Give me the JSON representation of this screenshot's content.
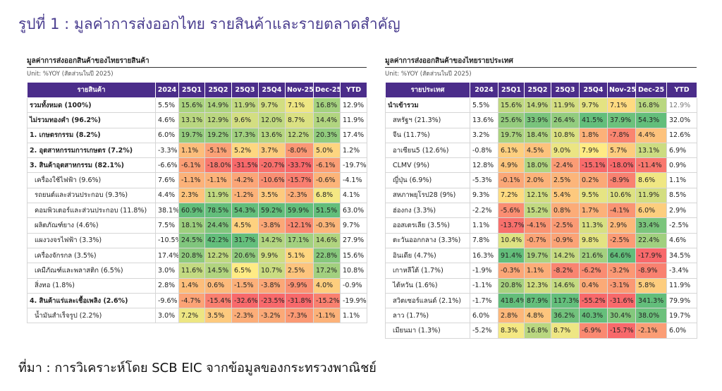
{
  "figure_title": "รูปที่ 1 : มูลค่าการส่งออกไทย รายสินค้าและรายตลาดสำคัญ",
  "source": "ที่มา : การวิเคราะห์โดย SCB EIC จากข้อมูลของกระทรวงพาณิชย์",
  "colors": {
    "header_bg": "#4b2d8a",
    "title": "#4a3d8f",
    "good": "#63be7b",
    "neutral": "#ffeb84",
    "bad": "#f8696b"
  },
  "left_table": {
    "title": "มูลค่าการส่งออกสินค้าของไทยรายสินค้า",
    "unit": "Unit: %YOY (สัดส่วนในปี 2025)",
    "headers": [
      "รายสินค้า",
      "2024",
      "25Q1",
      "25Q2",
      "25Q3",
      "25Q4",
      "Nov-25",
      "Dec-25",
      "YTD"
    ],
    "rows": [
      {
        "name": "รวมทั้งหมด (100%)",
        "level": "bold",
        "values": [
          "5.5%",
          "15.6%",
          "14.9%",
          "11.9%",
          "9.7%",
          "7.1%",
          "16.8%",
          "12.9%"
        ]
      },
      {
        "name": "ไม่รวมทองคำ (96.2%)",
        "level": "bold",
        "values": [
          "4.6%",
          "13.1%",
          "12.9%",
          "9.6%",
          "12.0%",
          "8.7%",
          "14.4%",
          "11.9%"
        ]
      },
      {
        "name": "1. เกษตรกรรม (8.2%)",
        "level": "bold",
        "values": [
          "6.0%",
          "19.7%",
          "19.2%",
          "17.3%",
          "13.6%",
          "12.2%",
          "20.3%",
          "17.4%"
        ]
      },
      {
        "name": "2. อุตสาหกรรมการเกษตร (7.2%)",
        "level": "bold",
        "values": [
          "-3.3%",
          "1.1%",
          "-5.1%",
          "5.2%",
          "3.7%",
          "-8.0%",
          "5.0%",
          "1.2%"
        ]
      },
      {
        "name": "3. สินค้าอุตสาหกรรม (82.1%)",
        "level": "bold",
        "values": [
          "-6.6%",
          "-6.1%",
          "-18.0%",
          "-31.5%",
          "-20.7%",
          "-33.7%",
          "-6.1%",
          "-19.7%"
        ]
      },
      {
        "name": "เครื่องใช้ไฟฟ้า (9.6%)",
        "level": "ind",
        "values": [
          "7.6%",
          "-1.1%",
          "-1.1%",
          "-4.2%",
          "-10.6%",
          "-15.7%",
          "-0.6%",
          "-4.1%"
        ]
      },
      {
        "name": "รถยนต์และส่วนประกอบ (9.3%)",
        "level": "ind",
        "values": [
          "4.4%",
          "2.3%",
          "11.9%",
          "-1.2%",
          "3.5%",
          "-2.3%",
          "6.8%",
          "4.1%"
        ]
      },
      {
        "name": "คอมพิวเตอร์และส่วนประกอบ (11.8%)",
        "level": "ind",
        "values": [
          "38.1%",
          "60.9%",
          "78.5%",
          "54.3%",
          "59.2%",
          "59.9%",
          "51.5%",
          "63.0%"
        ]
      },
      {
        "name": "ผลิตภัณฑ์ยาง (4.6%)",
        "level": "ind",
        "values": [
          "7.5%",
          "18.1%",
          "24.4%",
          "4.5%",
          "-3.8%",
          "-12.1%",
          "-0.3%",
          "9.7%"
        ]
      },
      {
        "name": "แผงวงจรไฟฟ้า (3.3%)",
        "level": "ind",
        "values": [
          "-10.5%",
          "24.5%",
          "42.2%",
          "31.7%",
          "14.2%",
          "17.1%",
          "14.6%",
          "27.9%"
        ]
      },
      {
        "name": "เครื่องจักรกล (3.5%)",
        "level": "ind",
        "values": [
          "17.4%",
          "20.8%",
          "12.2%",
          "20.6%",
          "9.9%",
          "5.1%",
          "22.8%",
          "15.6%"
        ]
      },
      {
        "name": "เคมีภัณฑ์และพลาสติก (6.5%)",
        "level": "ind",
        "values": [
          "3.0%",
          "11.6%",
          "14.5%",
          "6.5%",
          "10.7%",
          "2.5%",
          "17.2%",
          "10.8%"
        ]
      },
      {
        "name": "สิ่งทอ (1.8%)",
        "level": "ind",
        "values": [
          "2.8%",
          "1.4%",
          "0.6%",
          "-1.5%",
          "-3.8%",
          "-9.9%",
          "4.0%",
          "-0.9%"
        ]
      },
      {
        "name": "4. สินค้าแร่และเชื้อเพลิง (2.6%)",
        "level": "bold",
        "values": [
          "-9.6%",
          "-4.7%",
          "-15.4%",
          "-32.6%",
          "-23.5%",
          "-31.8%",
          "-15.2%",
          "-19.9%"
        ]
      },
      {
        "name": "น้ำมันสำเร็จรูป (2.2%)",
        "level": "ind",
        "values": [
          "3.0%",
          "7.2%",
          "3.5%",
          "-2.3%",
          "-3.2%",
          "-7.3%",
          "-1.1%",
          "1.1%"
        ]
      }
    ]
  },
  "right_table": {
    "title": "มูลค่าการส่งออกสินค้าของไทยรายประเทศ",
    "unit": "Unit: %YOY (สัดส่วนในปี 2025)",
    "headers": [
      "รายประเทศ",
      "2024",
      "25Q1",
      "25Q2",
      "25Q3",
      "25Q4",
      "Nov-25",
      "Dec-25",
      "YTD"
    ],
    "rows": [
      {
        "name": "นำเข้ารวม",
        "level": "bold",
        "values": [
          "5.5%",
          "15.6%",
          "14.9%",
          "11.9%",
          "9.7%",
          "7.1%",
          "16.8%",
          "12.9%"
        ]
      },
      {
        "name": "สหรัฐฯ (21.3%)",
        "level": "ind",
        "values": [
          "13.6%",
          "25.6%",
          "33.9%",
          "26.4%",
          "41.5%",
          "37.9%",
          "54.3%",
          "32.0%"
        ]
      },
      {
        "name": "จีน (11.7%)",
        "level": "ind",
        "values": [
          "3.2%",
          "19.7%",
          "18.4%",
          "10.8%",
          "1.8%",
          "-7.8%",
          "4.4%",
          "12.6%"
        ]
      },
      {
        "name": "อาเซียน5 (12.6%)",
        "level": "ind",
        "values": [
          "-0.8%",
          "6.1%",
          "4.5%",
          "9.0%",
          "7.9%",
          "5.7%",
          "13.1%",
          "6.9%"
        ]
      },
      {
        "name": "CLMV (9%)",
        "level": "ind",
        "values": [
          "12.8%",
          "4.9%",
          "18.0%",
          "-2.4%",
          "-15.1%",
          "-18.0%",
          "-11.4%",
          "0.9%"
        ]
      },
      {
        "name": "ญี่ปุ่น (6.9%)",
        "level": "ind",
        "values": [
          "-5.3%",
          "-0.1%",
          "2.0%",
          "2.5%",
          "0.2%",
          "-8.9%",
          "8.6%",
          "1.1%"
        ]
      },
      {
        "name": "สหภาพยุโรป28 (9%)",
        "level": "ind",
        "values": [
          "9.3%",
          "7.2%",
          "12.1%",
          "5.4%",
          "9.5%",
          "10.6%",
          "11.9%",
          "8.5%"
        ]
      },
      {
        "name": "ฮ่องกง (3.3%)",
        "level": "ind",
        "values": [
          "-2.2%",
          "-5.6%",
          "15.2%",
          "0.8%",
          "1.7%",
          "-4.1%",
          "6.0%",
          "2.9%"
        ]
      },
      {
        "name": "ออสเตรเลีย (3.5%)",
        "level": "ind",
        "values": [
          "1.1%",
          "-13.7%",
          "-4.1%",
          "-2.5%",
          "11.3%",
          "2.9%",
          "33.4%",
          "-2.5%"
        ]
      },
      {
        "name": "ตะวันออกกลาง (3.3%)",
        "level": "ind",
        "values": [
          "7.8%",
          "10.4%",
          "-0.7%",
          "-0.9%",
          "9.8%",
          "-2.5%",
          "22.4%",
          "4.6%"
        ]
      },
      {
        "name": "อินเดีย (4.7%)",
        "level": "ind",
        "values": [
          "16.3%",
          "91.4%",
          "19.7%",
          "14.2%",
          "21.6%",
          "64.6%",
          "-17.9%",
          "34.5%"
        ]
      },
      {
        "name": "เกาหลีใต้ (1.7%)",
        "level": "ind",
        "values": [
          "-1.9%",
          "-0.3%",
          "1.1%",
          "-8.2%",
          "-6.2%",
          "-3.2%",
          "-8.9%",
          "-3.4%"
        ]
      },
      {
        "name": "ไต้หวัน (1.6%)",
        "level": "ind",
        "values": [
          "-1.1%",
          "20.8%",
          "12.3%",
          "14.6%",
          "0.4%",
          "-3.1%",
          "5.8%",
          "11.9%"
        ]
      },
      {
        "name": "สวิตเซอร์แลนด์ (2.1%)",
        "level": "ind",
        "values": [
          "-1.7%",
          "418.4%",
          "87.9%",
          "117.3%",
          "-55.2%",
          "-31.6%",
          "341.3%",
          "79.9%"
        ]
      },
      {
        "name": "ลาว (1.7%)",
        "level": "ind",
        "values": [
          "6.0%",
          "2.8%",
          "4.8%",
          "36.2%",
          "40.3%",
          "30.4%",
          "38.0%",
          "19.7%"
        ]
      },
      {
        "name": "เมียนมา (1.3%)",
        "level": "ind",
        "values": [
          "-5.2%",
          "8.3%",
          "16.8%",
          "8.7%",
          "-6.9%",
          "-15.7%",
          "-2.1%",
          "6.0%"
        ]
      }
    ]
  }
}
